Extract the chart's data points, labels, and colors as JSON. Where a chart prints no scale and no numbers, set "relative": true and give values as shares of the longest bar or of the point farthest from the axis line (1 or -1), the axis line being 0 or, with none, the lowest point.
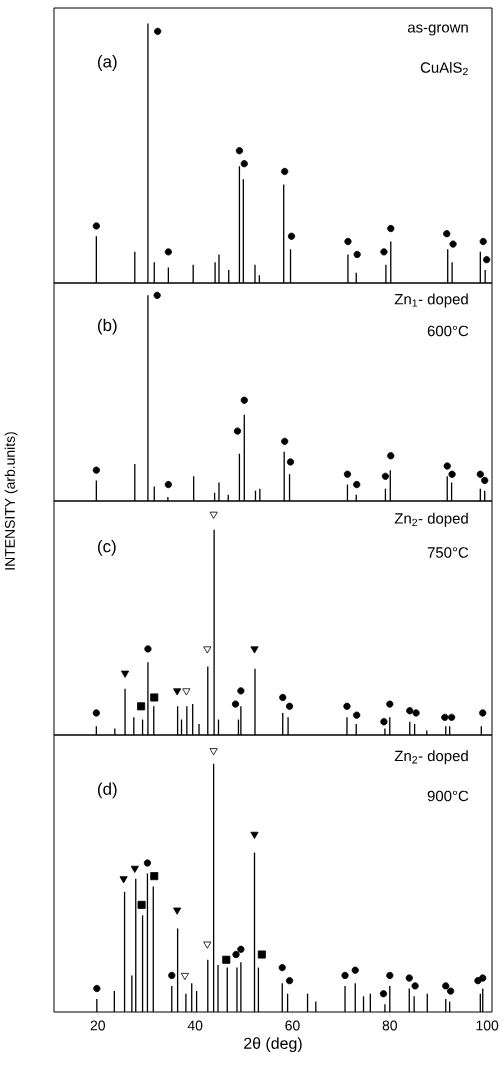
{
  "chart_data": [
    {
      "type": "bar",
      "relative": true,
      "xlim": [
        11,
        101
      ],
      "tick_labels": false,
      "legend": false,
      "annotations": [
        "(a)",
        "as-grown",
        "CuAlS$_{2}$"
      ],
      "series": [
        {
          "color": "#000000",
          "x": [
            19.7,
            27.6,
            30.3,
            31.6,
            34.5,
            39.6,
            44.1,
            44.9,
            46.9,
            49.1,
            49.9,
            52.3,
            53.2,
            58.2,
            59.6,
            71.4,
            73.1,
            79.2,
            80.2,
            91.9,
            92.8,
            98.6,
            99.6
          ],
          "values": [
            0.18,
            0.12,
            1,
            0.08,
            0.06,
            0.07,
            0.08,
            0.11,
            0.05,
            0.45,
            0.4,
            0.07,
            0.03,
            0.38,
            0.13,
            0.11,
            0.04,
            0.07,
            0.16,
            0.13,
            0.08,
            0.12,
            0.05
          ]
        },
        {
          "type": "scatter",
          "marker": "circle",
          "color": "#000000",
          "x": [
            19.7,
            32.3,
            34.5,
            49.1,
            50.1,
            58.4,
            59.8,
            71.4,
            73.3,
            78.8,
            80.2,
            91.7,
            93.0,
            99.2,
            99.9
          ],
          "values": [
            0.22,
            0.97,
            0.12,
            0.51,
            0.46,
            0.43,
            0.18,
            0.16,
            0.11,
            0.12,
            0.21,
            0.19,
            0.15,
            0.16,
            0.09
          ]
        }
      ]
    },
    {
      "type": "bar",
      "relative": true,
      "xlim": [
        11,
        101
      ],
      "tick_labels": false,
      "legend": false,
      "ylabel": "INTENSITY (arb.units)",
      "annotations": [
        "(b)",
        "Zn$_{1}$- doped",
        "600°C"
      ],
      "series": [
        {
          "color": "#000000",
          "x": [
            19.7,
            27.6,
            30.3,
            31.6,
            34.4,
            39.7,
            44.0,
            44.9,
            46.8,
            49.1,
            50.1,
            52.4,
            53.3,
            58.3,
            59.4,
            71.3,
            73.1,
            79.1,
            80.1,
            91.8,
            92.7,
            98.6,
            99.5
          ],
          "values": [
            0.1,
            0.18,
            1,
            0.07,
            0.02,
            0.12,
            0.04,
            0.09,
            0.03,
            0.23,
            0.42,
            0.05,
            0.06,
            0.24,
            0.13,
            0.08,
            0.03,
            0.06,
            0.15,
            0.12,
            0.09,
            0.06,
            0.05
          ]
        },
        {
          "type": "scatter",
          "marker": "circle",
          "color": "#000000",
          "x": [
            19.7,
            32.2,
            34.5,
            48.7,
            50.1,
            58.4,
            59.6,
            71.3,
            73.2,
            79.1,
            80.2,
            91.8,
            92.8,
            98.6,
            99.5
          ],
          "values": [
            0.15,
            1,
            0.08,
            0.34,
            0.49,
            0.29,
            0.19,
            0.13,
            0.08,
            0.12,
            0.22,
            0.17,
            0.13,
            0.13,
            0.1
          ]
        }
      ]
    },
    {
      "type": "bar",
      "relative": true,
      "xlim": [
        11,
        101
      ],
      "tick_labels": false,
      "legend": false,
      "annotations": [
        "(c)",
        "Zn$_{2}$- doped",
        "750°C"
      ],
      "series": [
        {
          "color": "#000000",
          "x": [
            19.7,
            23.5,
            25.6,
            27.4,
            29.2,
            30.3,
            31.5,
            36.4,
            37.2,
            38.3,
            39.5,
            40.8,
            42.6,
            43.9,
            44.8,
            48.9,
            49.4,
            52.3,
            58.0,
            59.1,
            71.2,
            73.1,
            79.0,
            80.0,
            84.1,
            85.1,
            87.6,
            91.5,
            92.3,
            98.8
          ],
          "values": [
            0.04,
            0.03,
            0.21,
            0.08,
            0.07,
            0.33,
            0.13,
            0.13,
            0.07,
            0.13,
            0.14,
            0.05,
            0.31,
            0.93,
            0.07,
            0.07,
            0.13,
            0.3,
            0.1,
            0.08,
            0.08,
            0.05,
            0.03,
            0.08,
            0.06,
            0.05,
            0.02,
            0.04,
            0.04,
            0.04
          ]
        },
        {
          "type": "scatter",
          "marker": "circle",
          "color": "#000000",
          "x": [
            19.7,
            30.3,
            48.3,
            49.4,
            58.0,
            59.4,
            71.2,
            73.2,
            78.8,
            80.0,
            84.1,
            85.4,
            91.3,
            92.7,
            99.1
          ],
          "values": [
            0.1,
            0.39,
            0.14,
            0.2,
            0.17,
            0.13,
            0.13,
            0.09,
            0.06,
            0.14,
            0.11,
            0.1,
            0.08,
            0.08,
            0.1
          ]
        },
        {
          "type": "scatter",
          "marker": "triangle",
          "color": "#000000",
          "x": [
            25.6,
            36.3,
            52.2
          ],
          "values": [
            0.28,
            0.2,
            0.39
          ]
        },
        {
          "type": "scatter",
          "marker": "triangle",
          "color": "#ffffff",
          "x": [
            38.2,
            42.5,
            43.8
          ],
          "values": [
            0.2,
            0.39,
            1
          ]
        },
        {
          "type": "scatter",
          "marker": "square",
          "color": "#000000",
          "x": [
            28.9,
            31.6
          ],
          "values": [
            0.13,
            0.17
          ]
        }
      ]
    },
    {
      "type": "bar",
      "relative": true,
      "xlim": [
        11,
        101
      ],
      "xticks": [
        20,
        40,
        60,
        80,
        100
      ],
      "tick_labels": "x",
      "legend": false,
      "xlabel": "2θ (deg)",
      "annotations": [
        "(d)",
        "Zn$_{2}$- doped",
        "900°C"
      ],
      "series": [
        {
          "color": "#000000",
          "x": [
            19.8,
            23.4,
            25.5,
            27.0,
            27.8,
            29.2,
            30.2,
            31.4,
            35.2,
            36.4,
            38.1,
            39.3,
            40.3,
            42.6,
            43.8,
            44.7,
            46.6,
            48.6,
            49.4,
            52.2,
            53.0,
            57.9,
            59.0,
            63.1,
            64.8,
            70.8,
            72.9,
            74.6,
            76.0,
            79.0,
            80.0,
            84.0,
            85.0,
            87.7,
            91.5,
            92.3,
            98.6,
            99.1
          ],
          "values": [
            0.05,
            0.08,
            0.46,
            0.14,
            0.51,
            0.37,
            0.53,
            0.48,
            0.1,
            0.32,
            0.07,
            0.11,
            0.08,
            0.2,
            0.95,
            0.18,
            0.17,
            0.17,
            0.19,
            0.61,
            0.17,
            0.11,
            0.07,
            0.07,
            0.04,
            0.1,
            0.11,
            0.06,
            0.07,
            0.03,
            0.1,
            0.09,
            0.06,
            0.07,
            0.05,
            0.04,
            0.07,
            0.09
          ]
        },
        {
          "type": "scatter",
          "marker": "circle",
          "color": "#000000",
          "x": [
            19.8,
            30.2,
            35.2,
            48.4,
            49.4,
            57.9,
            59.4,
            70.8,
            72.9,
            78.7,
            80.0,
            84.0,
            85.2,
            91.5,
            92.5,
            98.1,
            99.1
          ],
          "values": [
            0.09,
            0.57,
            0.14,
            0.22,
            0.24,
            0.17,
            0.12,
            0.14,
            0.16,
            0.07,
            0.14,
            0.13,
            0.1,
            0.1,
            0.08,
            0.12,
            0.13
          ]
        },
        {
          "type": "scatter",
          "marker": "triangle",
          "color": "#000000",
          "x": [
            25.3,
            27.6,
            36.3,
            52.2
          ],
          "values": [
            0.51,
            0.55,
            0.39,
            0.68
          ]
        },
        {
          "type": "scatter",
          "marker": "triangle",
          "color": "#ffffff",
          "x": [
            37.9,
            42.5,
            43.8
          ],
          "values": [
            0.14,
            0.26,
            1
          ]
        },
        {
          "type": "scatter",
          "marker": "square",
          "color": "#000000",
          "x": [
            29.0,
            31.6,
            46.4,
            53.7
          ],
          "values": [
            0.41,
            0.52,
            0.2,
            0.22
          ]
        }
      ]
    }
  ]
}
